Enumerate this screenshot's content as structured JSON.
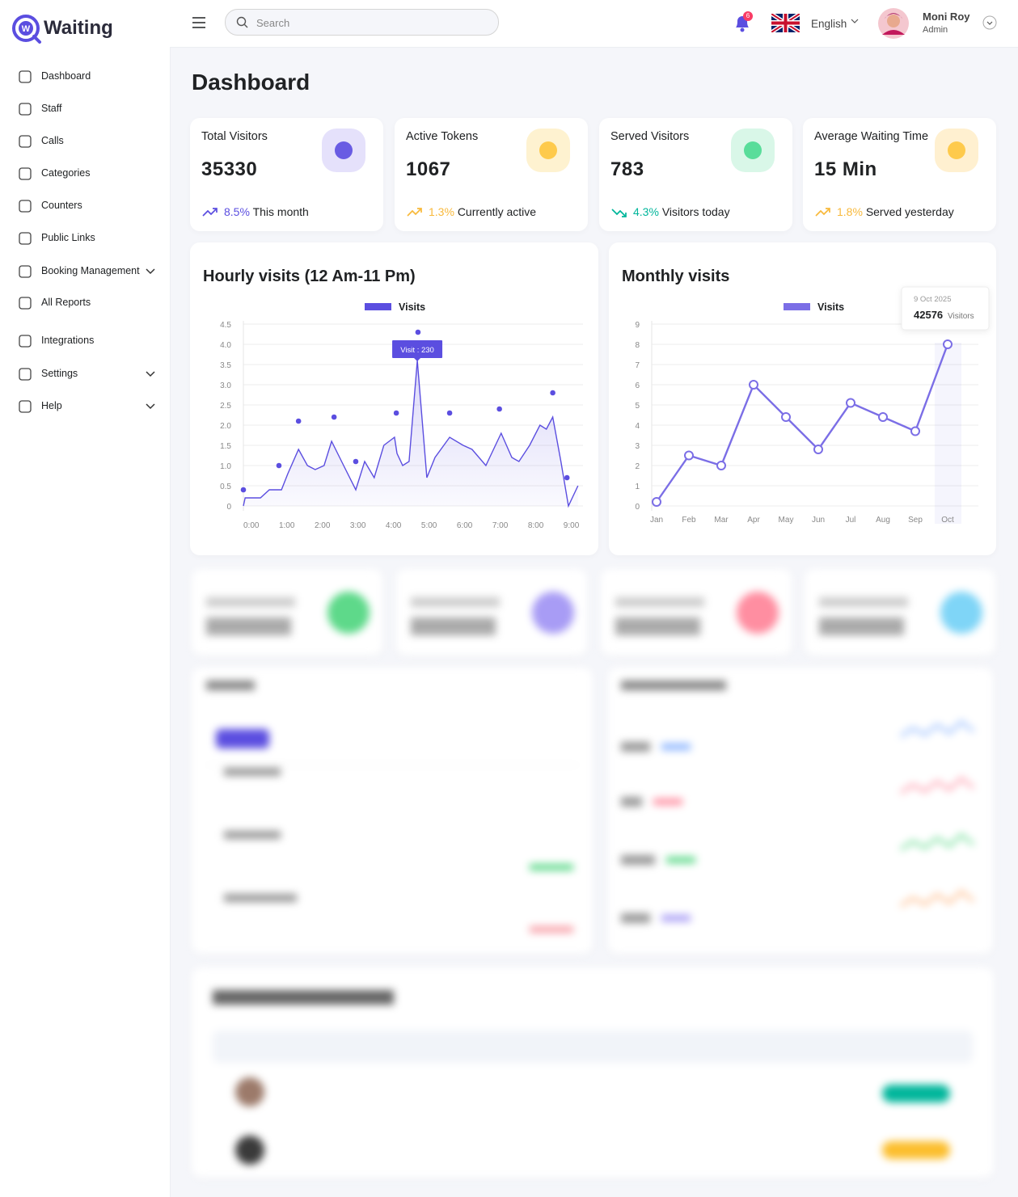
{
  "logo": "Waiting",
  "sidebar": [
    "Dashboard",
    "Staff",
    "Calls",
    "Categories",
    "Counters",
    "Public Links",
    "Booking Management",
    "All Reports",
    "Integrations",
    "Settings",
    "Help"
  ],
  "header": {
    "search_placeholder": "Search",
    "notifications": "6",
    "language": "English",
    "user_name": "Moni Roy",
    "user_role": "Admin"
  },
  "page_title": "Dashboard",
  "stats": [
    {
      "title": "Total Visitors",
      "value": "35330",
      "change": "8.5%",
      "note": "This month"
    },
    {
      "title": "Active Tokens",
      "value": "1067",
      "change": "1.3%",
      "note": "Currently active"
    },
    {
      "title": "Served Visitors",
      "value": "783",
      "change": "4.3%",
      "note": "Visitors today"
    },
    {
      "title": "Average Waiting Time",
      "value": "15 Min",
      "change": "1.8%",
      "note": "Served yesterday"
    }
  ],
  "chart_data": [
    {
      "type": "line",
      "title": "Hourly visits (12 Am-11 Pm)",
      "series": [
        {
          "name": "Visits",
          "color": "#5b4ee0",
          "x": [
            0,
            0.05,
            0.48,
            0.73,
            1.07,
            1.25,
            1.55,
            1.8,
            2.02,
            2.27,
            2.48,
            2.82,
            3.16,
            3.41,
            3.68,
            3.95,
            4.25,
            4.32,
            4.48,
            4.66,
            4.89,
            5.16,
            5.39,
            5.8,
            6.18,
            6.43,
            6.82,
            7.25,
            7.55,
            7.75,
            8.05,
            8.34,
            8.52,
            8.7,
            8.93,
            9.14,
            9.41
          ],
          "values": [
            0,
            0.2,
            0.2,
            0.4,
            0.4,
            0.8,
            1.4,
            1.0,
            0.9,
            1.0,
            1.6,
            1.0,
            0.4,
            1.1,
            0.7,
            1.5,
            1.7,
            1.3,
            1.0,
            1.1,
            3.6,
            0.7,
            1.2,
            1.7,
            1.5,
            1.4,
            1.0,
            1.8,
            1.2,
            1.1,
            1.5,
            2.0,
            1.9,
            2.2,
            1.1,
            0,
            0.5
          ]
        }
      ],
      "markers": {
        "x": [
          0,
          1.0,
          1.55,
          2.55,
          3.16,
          4.3,
          4.91,
          5.8,
          7.2,
          8.7,
          9.1
        ],
        "values": [
          0.4,
          1.0,
          2.1,
          2.2,
          1.1,
          2.3,
          4.3,
          2.3,
          2.4,
          2.8,
          0.7
        ]
      },
      "annotation": "Visit : 230",
      "xlim": [
        0,
        9.55
      ],
      "xticks": [
        {
          "value": 0,
          "label": "0:00"
        },
        {
          "value": 1,
          "label": "1:00"
        },
        {
          "value": 2,
          "label": "2:00"
        },
        {
          "value": 3,
          "label": "3:00"
        },
        {
          "value": 4,
          "label": "4:00"
        },
        {
          "value": 5,
          "label": "5:00"
        },
        {
          "value": 6,
          "label": "6:00"
        },
        {
          "value": 7,
          "label": "7:00"
        },
        {
          "value": 8,
          "label": "8:00"
        },
        {
          "value": 9,
          "label": "9:00"
        }
      ],
      "ylim": [
        0,
        4.5
      ],
      "yticks": [
        0,
        0.5,
        {
          "value": 1,
          "label": "1.0"
        },
        1.5,
        {
          "value": 2,
          "label": "2.0"
        },
        2.5,
        {
          "value": 3,
          "label": "3.0"
        },
        3.5,
        {
          "value": 4,
          "label": "4.0"
        },
        4.5
      ],
      "grid": true
    },
    {
      "type": "line",
      "title": "Monthly visits",
      "categories": [
        "Jan",
        "Feb",
        "Mar",
        "Apr",
        "May",
        "Jun",
        "Jul",
        "Aug",
        "Sep",
        "Oct"
      ],
      "series": [
        {
          "name": "Visits",
          "color": "#7b6ee6",
          "values": [
            0.2,
            2.5,
            2.0,
            6.0,
            4.4,
            2.8,
            5.1,
            4.4,
            3.7,
            8.0
          ]
        }
      ],
      "tooltip": {
        "date": "9 Oct 2025",
        "value": "42576",
        "unit": "Visitors"
      },
      "ylim": [
        0,
        9
      ],
      "yticks": [
        0,
        1,
        2,
        3,
        4,
        5,
        6,
        7,
        8,
        9
      ],
      "grid": true
    }
  ]
}
